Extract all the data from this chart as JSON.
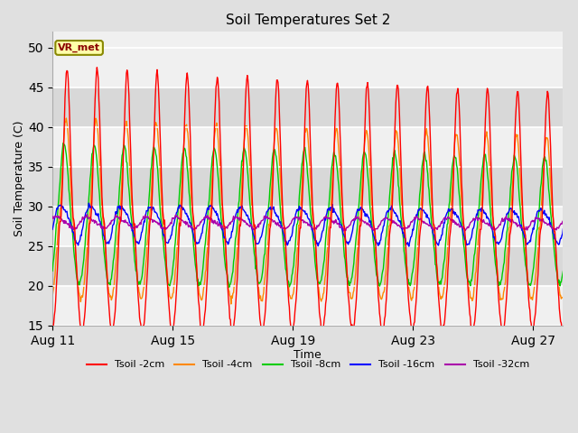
{
  "title": "Soil Temperatures Set 2",
  "xlabel": "Time",
  "ylabel": "Soil Temperature (C)",
  "ylim": [
    15,
    52
  ],
  "yticks": [
    15,
    20,
    25,
    30,
    35,
    40,
    45,
    50
  ],
  "xtick_labels": [
    "Aug 11",
    "Aug 15",
    "Aug 19",
    "Aug 23",
    "Aug 27"
  ],
  "xtick_positions": [
    0,
    4,
    8,
    12,
    16
  ],
  "num_days": 17,
  "samples_per_day": 48,
  "colors": {
    "Tsoil -2cm": "#ff0000",
    "Tsoil -4cm": "#ff8800",
    "Tsoil -8cm": "#00cc00",
    "Tsoil -16cm": "#0000ff",
    "Tsoil -32cm": "#aa00aa"
  },
  "annotation_text": "VR_met",
  "annotation_bg": "#ffffaa",
  "annotation_border": "#888800",
  "bg_color": "#e0e0e0",
  "band_colors": [
    "#f0f0f0",
    "#d8d8d8"
  ],
  "legend_labels": [
    "Tsoil -2cm",
    "Tsoil -4cm",
    "Tsoil -8cm",
    "Tsoil -16cm",
    "Tsoil -32cm"
  ],
  "figsize": [
    6.4,
    4.8
  ],
  "dpi": 100
}
